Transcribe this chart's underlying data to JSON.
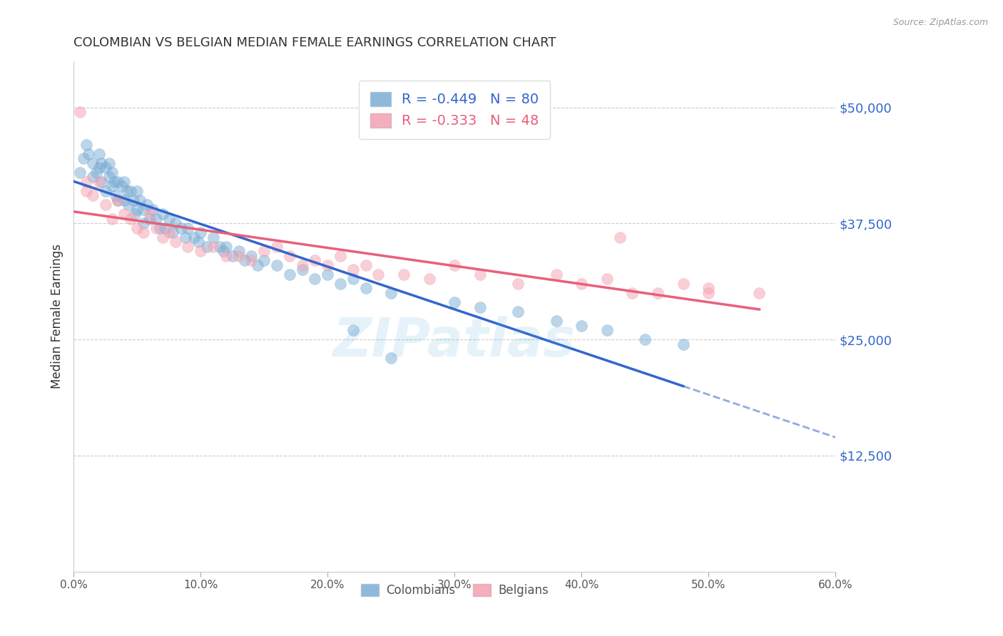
{
  "title": "COLOMBIAN VS BELGIAN MEDIAN FEMALE EARNINGS CORRELATION CHART",
  "source": "Source: ZipAtlas.com",
  "ylabel": "Median Female Earnings",
  "ytick_labels": [
    "$50,000",
    "$37,500",
    "$25,000",
    "$12,500"
  ],
  "ytick_values": [
    50000,
    37500,
    25000,
    12500
  ],
  "ymin": 0,
  "ymax": 55000,
  "xmin": 0.0,
  "xmax": 0.6,
  "legend_text_blue": "R = -0.449   N = 80",
  "legend_text_pink": "R = -0.333   N = 48",
  "blue_color": "#7aadd4",
  "pink_color": "#f4a0b0",
  "blue_line_color": "#3366CC",
  "pink_line_color": "#e8607a",
  "watermark": "ZIPatlas",
  "colombians_x": [
    0.005,
    0.008,
    0.01,
    0.012,
    0.015,
    0.015,
    0.018,
    0.02,
    0.02,
    0.022,
    0.022,
    0.025,
    0.025,
    0.028,
    0.028,
    0.03,
    0.03,
    0.032,
    0.033,
    0.035,
    0.035,
    0.038,
    0.04,
    0.04,
    0.042,
    0.043,
    0.045,
    0.047,
    0.048,
    0.05,
    0.05,
    0.052,
    0.055,
    0.055,
    0.058,
    0.06,
    0.062,
    0.065,
    0.068,
    0.07,
    0.072,
    0.075,
    0.078,
    0.08,
    0.085,
    0.088,
    0.09,
    0.095,
    0.098,
    0.1,
    0.105,
    0.11,
    0.115,
    0.118,
    0.12,
    0.125,
    0.13,
    0.135,
    0.14,
    0.145,
    0.15,
    0.16,
    0.17,
    0.18,
    0.19,
    0.2,
    0.21,
    0.22,
    0.23,
    0.25,
    0.3,
    0.32,
    0.35,
    0.38,
    0.4,
    0.42,
    0.45,
    0.48,
    0.22,
    0.25
  ],
  "colombians_y": [
    43000,
    44500,
    46000,
    45000,
    44000,
    42500,
    43000,
    45000,
    43500,
    44000,
    42000,
    43500,
    41000,
    44000,
    42500,
    43000,
    41500,
    42000,
    40500,
    42000,
    40000,
    41500,
    42000,
    40000,
    41000,
    39500,
    41000,
    40000,
    38500,
    41000,
    39000,
    40000,
    39000,
    37500,
    39500,
    38000,
    39000,
    38000,
    37000,
    38500,
    37000,
    38000,
    36500,
    37500,
    37000,
    36000,
    37000,
    36000,
    35500,
    36500,
    35000,
    36000,
    35000,
    34500,
    35000,
    34000,
    34500,
    33500,
    34000,
    33000,
    33500,
    33000,
    32000,
    32500,
    31500,
    32000,
    31000,
    31500,
    30500,
    30000,
    29000,
    28500,
    28000,
    27000,
    26500,
    26000,
    25000,
    24500,
    26000,
    23000
  ],
  "belgians_x": [
    0.005,
    0.01,
    0.015,
    0.02,
    0.025,
    0.03,
    0.035,
    0.04,
    0.045,
    0.05,
    0.055,
    0.06,
    0.065,
    0.07,
    0.075,
    0.08,
    0.09,
    0.1,
    0.11,
    0.12,
    0.13,
    0.14,
    0.15,
    0.16,
    0.17,
    0.18,
    0.19,
    0.2,
    0.21,
    0.22,
    0.23,
    0.24,
    0.26,
    0.28,
    0.3,
    0.32,
    0.35,
    0.38,
    0.4,
    0.42,
    0.44,
    0.46,
    0.48,
    0.5,
    0.01,
    0.43,
    0.5,
    0.54
  ],
  "belgians_y": [
    49500,
    42000,
    40500,
    42000,
    39500,
    38000,
    40000,
    38500,
    38000,
    37000,
    36500,
    38500,
    37000,
    36000,
    36500,
    35500,
    35000,
    34500,
    35000,
    34000,
    34000,
    33500,
    34500,
    35000,
    34000,
    33000,
    33500,
    33000,
    34000,
    32500,
    33000,
    32000,
    32000,
    31500,
    33000,
    32000,
    31000,
    32000,
    31000,
    31500,
    30000,
    30000,
    31000,
    30500,
    41000,
    36000,
    30000,
    30000
  ]
}
